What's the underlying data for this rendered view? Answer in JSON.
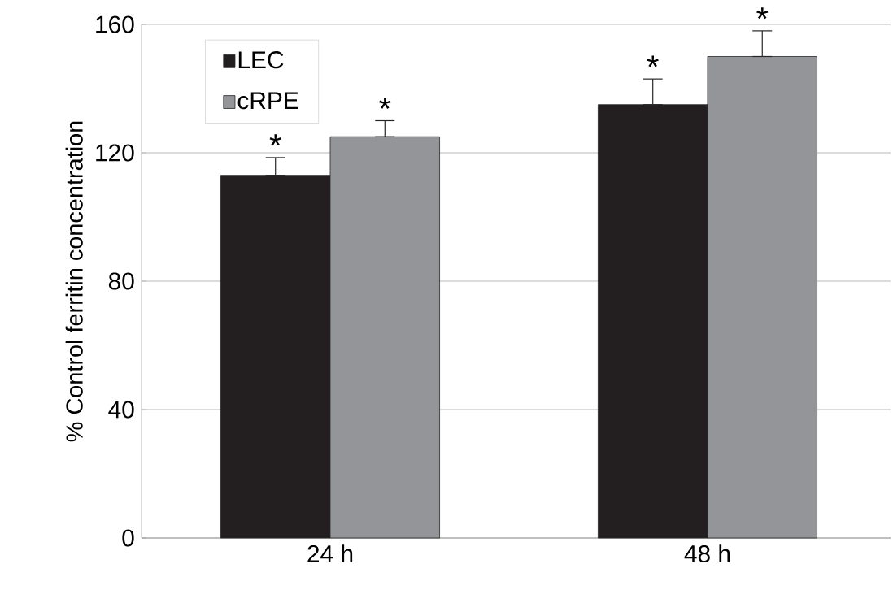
{
  "chart_data": {
    "type": "bar",
    "ylabel": "% Control ferritin concentration",
    "categories": [
      "24 h",
      "48 h"
    ],
    "series": [
      {
        "name": "LEC",
        "color": "#231f20",
        "values": [
          113,
          135
        ],
        "errors": [
          [
            113,
            118.5
          ],
          [
            135,
            143
          ]
        ]
      },
      {
        "name": "cRPE",
        "color": "#939598",
        "values": [
          125,
          150
        ],
        "errors": [
          [
            125,
            130
          ],
          [
            150,
            158
          ]
        ]
      }
    ],
    "ylim": [
      0,
      160
    ],
    "yticks": [
      0,
      40,
      80,
      120,
      160
    ],
    "grid": "y",
    "legend": "top left",
    "annotations": [
      "*",
      "*",
      "*",
      "*"
    ]
  }
}
